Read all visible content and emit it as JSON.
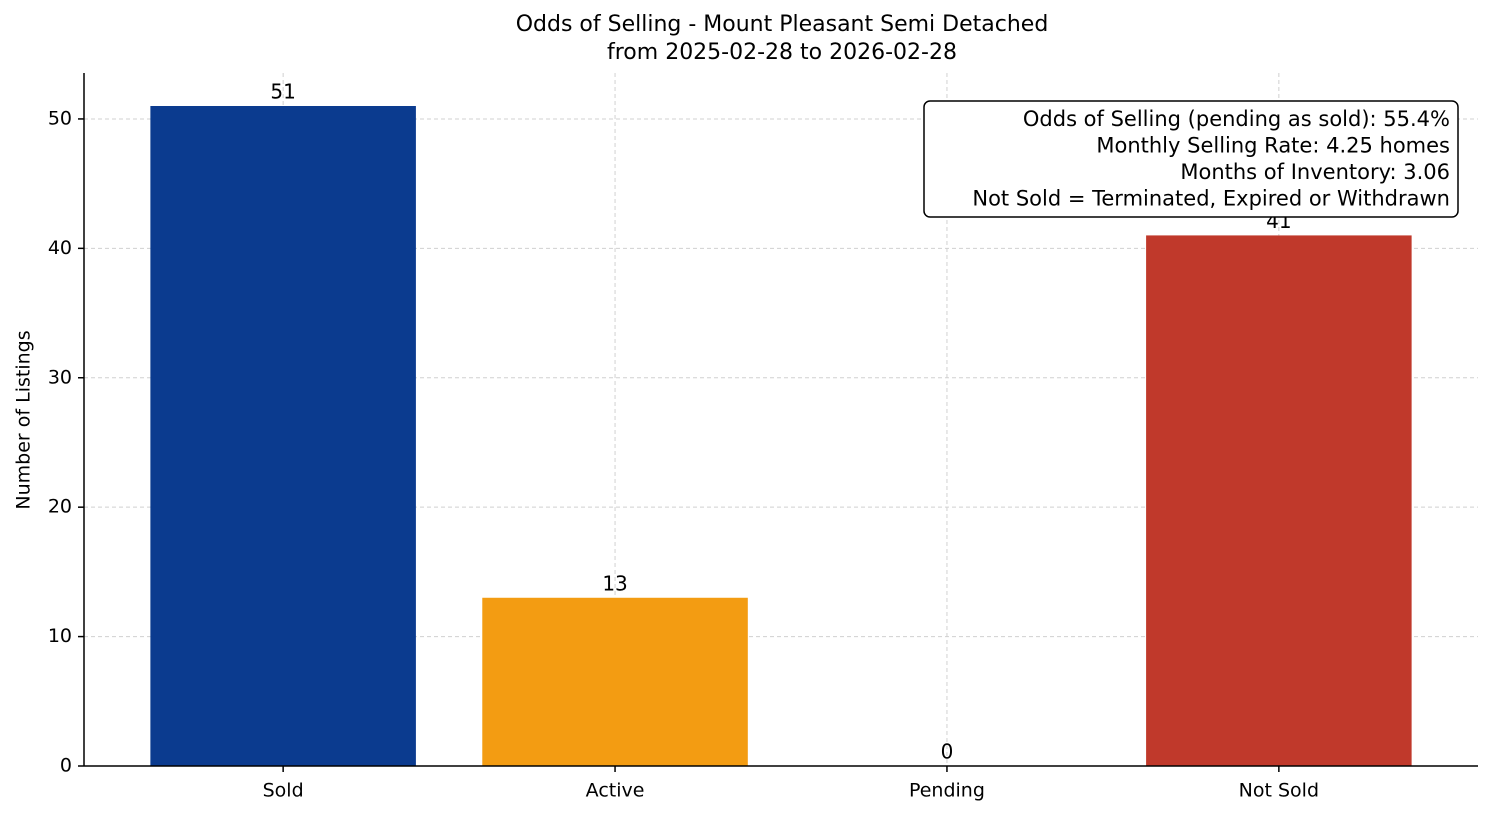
{
  "chart_data": {
    "type": "bar",
    "title": [
      "Odds of Selling - Mount Pleasant Semi Detached",
      "from 2025-02-28 to 2026-02-28"
    ],
    "y_label": "Number of Listings",
    "categories": [
      "Sold",
      "Active",
      "Pending",
      "Not Sold"
    ],
    "values": [
      51,
      13,
      0,
      41
    ],
    "colors": [
      "#0b3b8f",
      "#f39c12",
      null,
      "#c0392b"
    ],
    "ylim": [
      0,
      53.55
    ],
    "yticks": [
      0,
      10,
      20,
      30,
      40,
      50
    ],
    "grid": true,
    "annotation": [
      "Odds of Selling (pending as sold): 55.4%",
      "Monthly Selling Rate: 4.25 homes",
      "Months of Inventory: 3.06",
      "Not Sold = Terminated, Expired or Withdrawn"
    ]
  }
}
